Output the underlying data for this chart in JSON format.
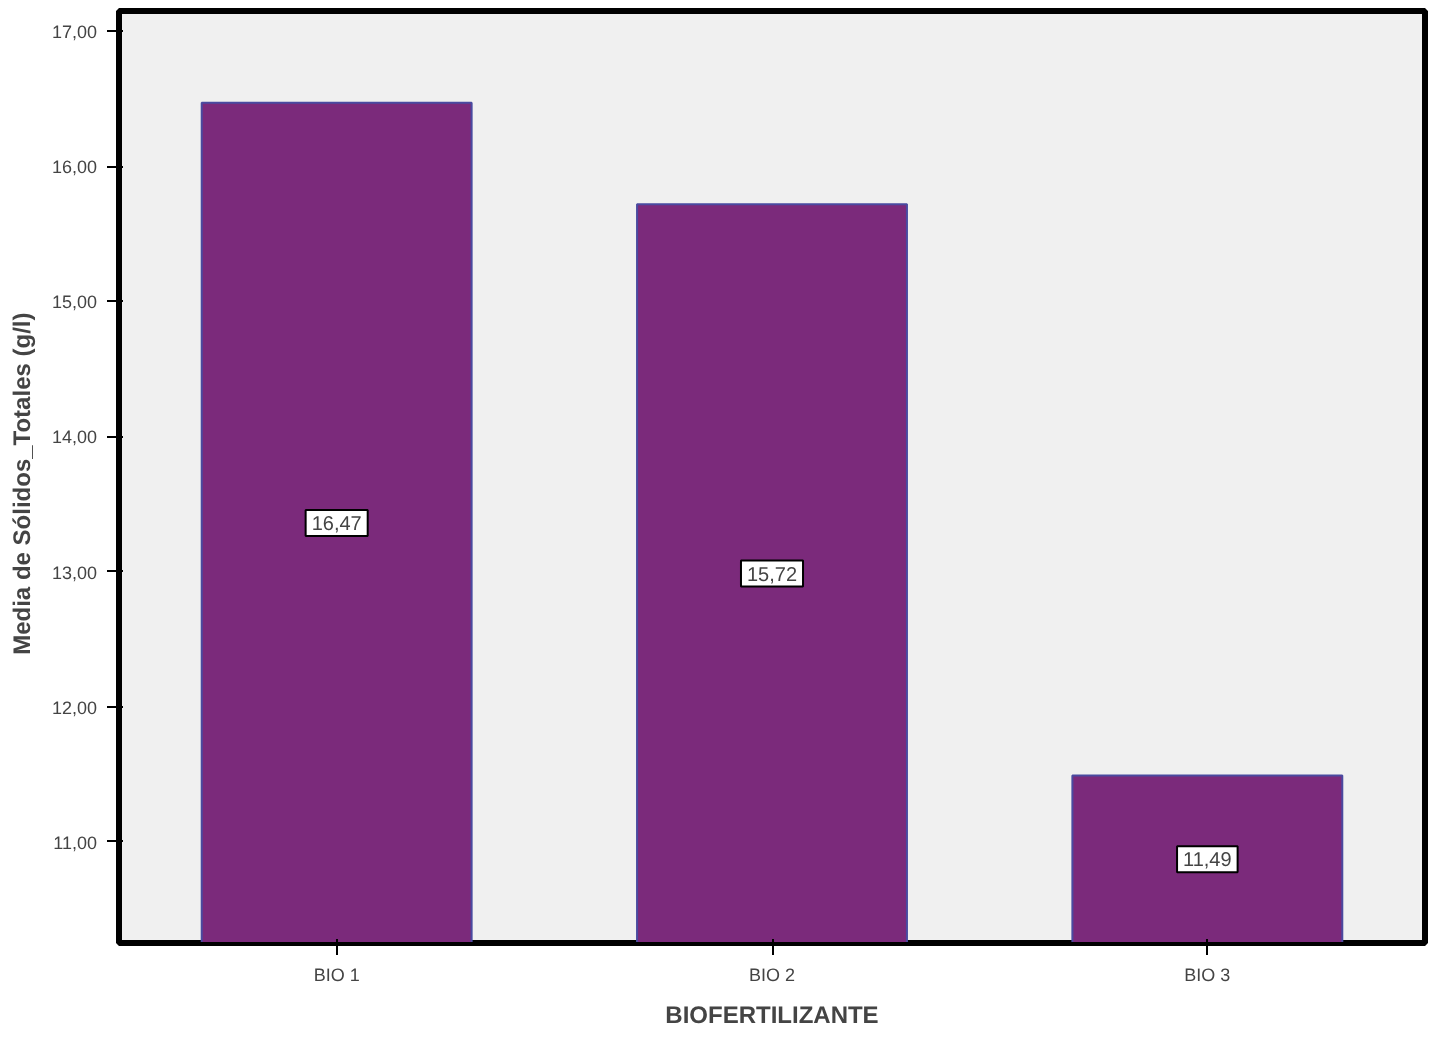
{
  "chart_data": {
    "type": "bar",
    "xlabel": "BIOFERTILIZANTE",
    "ylabel": "Media de Sólidos_Totales   (g/l)",
    "categories": [
      "BIO 1",
      "BIO 2",
      "BIO 3"
    ],
    "values": [
      16.47,
      15.72,
      11.49
    ],
    "color": "#7b2a7b",
    "ylim": [
      10.25,
      17.15
    ],
    "yticks": [
      {
        "value": 11,
        "label": "11,00"
      },
      {
        "value": 12,
        "label": "12,00"
      },
      {
        "value": 13,
        "label": "13,00"
      },
      {
        "value": 14,
        "label": "14,00"
      },
      {
        "value": 15,
        "label": "15,00"
      },
      {
        "value": 16,
        "label": "16,00"
      },
      {
        "value": 17,
        "label": "17,00"
      }
    ],
    "value_labels": [
      "16,47",
      "15,72",
      "11,49"
    ],
    "grid": false
  }
}
